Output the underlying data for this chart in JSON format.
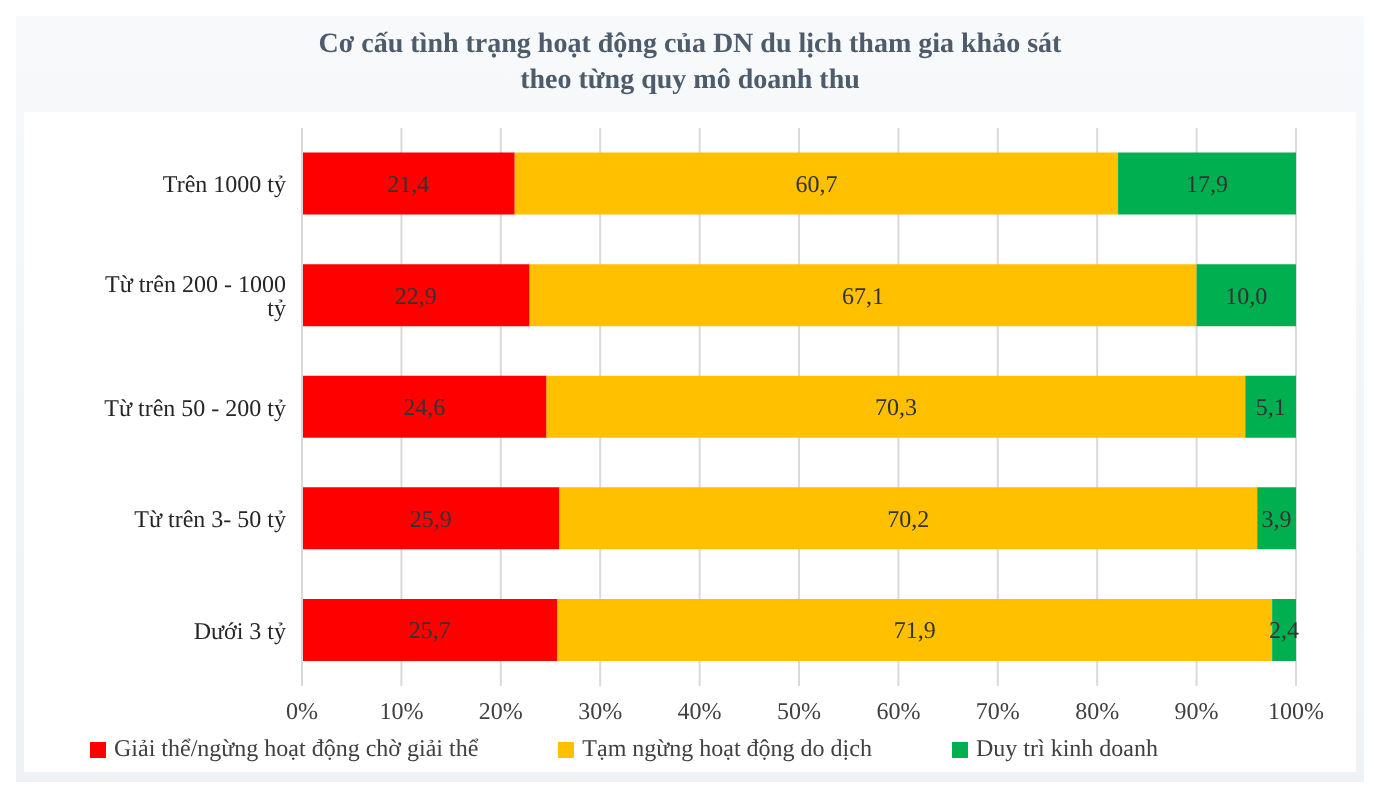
{
  "chart_data": {
    "type": "bar",
    "orientation": "horizontal",
    "stacked": true,
    "title": "Cơ cấu tình trạng hoạt động của DN du lịch tham gia khảo sát theo từng quy mô doanh thu",
    "categories": [
      "Trên 1000 tỷ",
      "Từ trên 200 - 1000 tỷ",
      "Từ trên 50 - 200 tỷ",
      "Từ trên 3- 50 tỷ",
      "Dưới 3 tỷ"
    ],
    "series": [
      {
        "name": "Giải thể/ngừng hoạt động chờ giải  thể",
        "color": "#ff0000",
        "values": [
          21.4,
          22.9,
          24.6,
          25.9,
          25.7
        ],
        "value_labels": [
          "21,4",
          "22,9",
          "24,6",
          "25,9",
          "25,7"
        ]
      },
      {
        "name": "Tạm ngừng hoạt động do dịch",
        "color": "#ffc000",
        "values": [
          60.7,
          67.1,
          70.3,
          70.2,
          71.9
        ],
        "value_labels": [
          "60,7",
          "67,1",
          "70,3",
          "70,2",
          "71,9"
        ]
      },
      {
        "name": "Duy trì kinh doanh",
        "color": "#00b050",
        "values": [
          17.9,
          10.0,
          5.1,
          3.9,
          2.4
        ],
        "value_labels": [
          "17,9",
          "10,0",
          "5,1",
          "3,9",
          "2,4"
        ]
      }
    ],
    "xlim": [
      0,
      100
    ],
    "xticks": [
      {
        "value": 0,
        "label": "0%"
      },
      {
        "value": 10,
        "label": "10%"
      },
      {
        "value": 20,
        "label": "20%"
      },
      {
        "value": 30,
        "label": "30%"
      },
      {
        "value": 40,
        "label": "40%"
      },
      {
        "value": 50,
        "label": "50%"
      },
      {
        "value": 60,
        "label": "60%"
      },
      {
        "value": 70,
        "label": "70%"
      },
      {
        "value": 80,
        "label": "80%"
      },
      {
        "value": 90,
        "label": "90%"
      },
      {
        "value": 100,
        "label": "100%"
      }
    ],
    "grid": "x",
    "legend": "bottom"
  }
}
